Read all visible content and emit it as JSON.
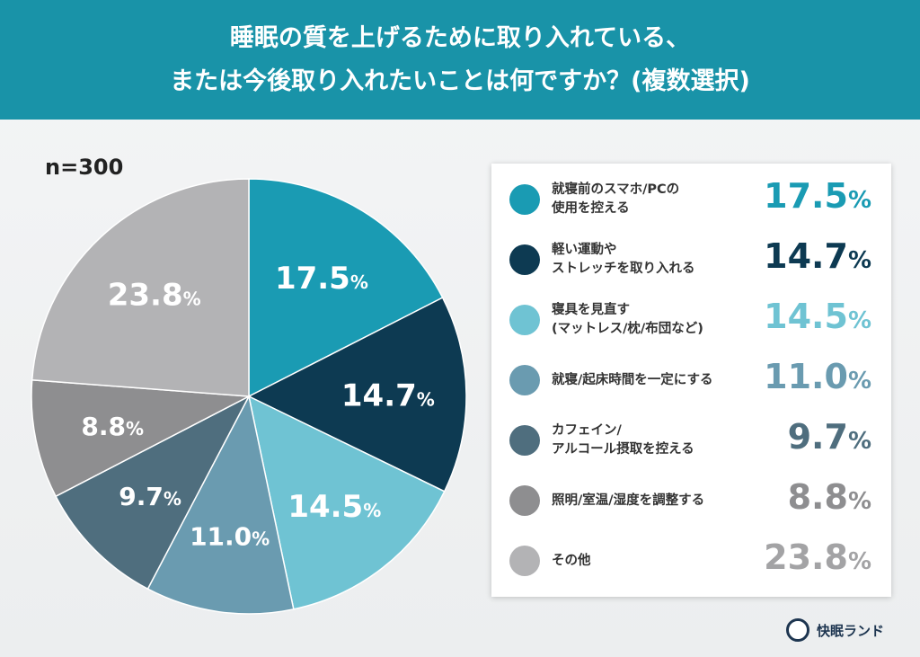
{
  "chart_data": {
    "type": "pie",
    "title": [
      "睡眠の質を上げるために取り入れている、",
      "または今後取り入れたいことは何ですか？(複数選択)"
    ],
    "sample": "n=300",
    "start": "top",
    "direction": "clockwise",
    "legend_position": "right",
    "slices": [
      {
        "label": "就寝前のスマホ/PCの\n使用を控える",
        "value": 17.5,
        "color": "#1a9bb3",
        "text_color": "#1a9bb3"
      },
      {
        "label": "軽い運動や\nストレッチを取り入れる",
        "value": 14.7,
        "color": "#0d3a52",
        "text_color": "#0d3a52"
      },
      {
        "label": "寝具を見直す\n(マットレス/枕/布団など)",
        "value": 14.5,
        "color": "#6fc3d3",
        "text_color": "#6fc3d3"
      },
      {
        "label": "就寝/起床時間を一定にする",
        "value": 11.0,
        "color": "#6a9bb0",
        "text_color": "#6a9bb0"
      },
      {
        "label": "カフェイン/\nアルコール摂取を控える",
        "value": 9.7,
        "color": "#4f6e7e",
        "text_color": "#4f6e7e"
      },
      {
        "label": "照明/室温/湿度を調整する",
        "value": 8.8,
        "color": "#8e8e90",
        "text_color": "#8e8e90"
      },
      {
        "label": "その他",
        "value": 23.8,
        "color": "#b3b3b5",
        "text_color": "#a3a3a5"
      }
    ],
    "unit": "%"
  },
  "brand": {
    "name": "快眠ランド"
  }
}
